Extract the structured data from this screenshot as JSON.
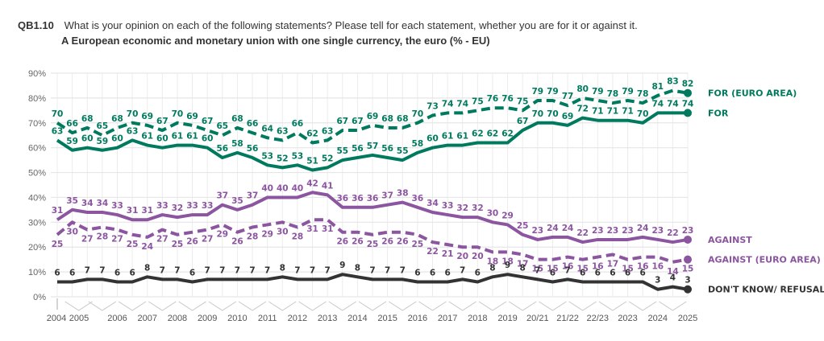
{
  "header": {
    "code": "QB1.10",
    "question": "What is your opinion on each of the following statements? Please tell for each statement, whether you are for it or against it.",
    "subtitle": "A European economic and monetary union with one single currency, the euro (% - EU)"
  },
  "chart_data": {
    "type": "line",
    "title": "A European economic and monetary union with one single currency, the euro (% - EU)",
    "xlabel": "",
    "ylabel": "",
    "ylim": [
      0,
      90
    ],
    "yticks": [
      "0%",
      "10%",
      "20%",
      "30%",
      "40%",
      "50%",
      "60%",
      "70%",
      "80%",
      "90%"
    ],
    "grid": true,
    "legend_placement": "right (end of lines)",
    "x_count": 43,
    "x_tick_labels": [
      {
        "index": 0,
        "label": "2004"
      },
      {
        "index": 2,
        "label": "2005"
      },
      {
        "index": 5,
        "label": "2006"
      },
      {
        "index": 8,
        "label": "2007"
      },
      {
        "index": 11,
        "label": "2008"
      },
      {
        "index": 14,
        "label": "2009"
      },
      {
        "index": 17,
        "label": "2010"
      },
      {
        "index": 20,
        "label": "2011"
      },
      {
        "index": 23,
        "label": "2012"
      },
      {
        "index": 26,
        "label": "2013"
      },
      {
        "index": 29,
        "label": "2014"
      },
      {
        "index": 32,
        "label": "2015"
      },
      {
        "index": 35,
        "label": "2016"
      },
      {
        "index": 38,
        "label": "2017"
      },
      {
        "index": 41,
        "label": "2018"
      },
      {
        "index": 44,
        "label": "2019"
      },
      {
        "index": 47,
        "label": "20/21"
      },
      {
        "index": 50,
        "label": "21/22"
      },
      {
        "index": 53,
        "label": "22/23"
      },
      {
        "index": 56,
        "label": "2023"
      },
      {
        "index": 59,
        "label": "2024"
      },
      {
        "index": 62,
        "label": "2025"
      }
    ],
    "series": [
      {
        "name": "FOR (EURO AREA)",
        "color": "#007A5E",
        "style": "dashed",
        "label_pos": "above",
        "values": [
          70,
          66,
          68,
          65,
          68,
          70,
          69,
          67,
          70,
          69,
          67,
          65,
          68,
          66,
          64,
          63,
          66,
          62,
          63,
          67,
          67,
          69,
          68,
          68,
          70,
          73,
          74,
          74,
          75,
          76,
          76,
          75,
          79,
          79,
          77,
          80,
          79,
          78,
          79,
          78,
          81,
          83,
          82
        ]
      },
      {
        "name": "FOR",
        "color": "#007A5E",
        "style": "solid",
        "label_pos": "above",
        "values": [
          63,
          59,
          60,
          59,
          60,
          63,
          61,
          60,
          61,
          61,
          60,
          56,
          58,
          56,
          53,
          52,
          53,
          51,
          52,
          55,
          56,
          57,
          56,
          55,
          58,
          60,
          61,
          61,
          62,
          62,
          62,
          67,
          70,
          70,
          69,
          72,
          71,
          71,
          71,
          70,
          74,
          74,
          74
        ]
      },
      {
        "name": "AGAINST",
        "color": "#8B55A0",
        "style": "solid",
        "label_pos": "above",
        "values": [
          31,
          35,
          34,
          34,
          33,
          31,
          31,
          33,
          32,
          33,
          33,
          37,
          35,
          37,
          40,
          40,
          40,
          42,
          41,
          36,
          36,
          36,
          37,
          38,
          36,
          34,
          33,
          32,
          32,
          30,
          29,
          25,
          23,
          24,
          24,
          22,
          23,
          23,
          23,
          24,
          23,
          22,
          23
        ]
      },
      {
        "name": "AGAINST (EURO AREA)",
        "color": "#8B55A0",
        "style": "dashed",
        "label_pos": "below",
        "values": [
          25,
          30,
          27,
          28,
          27,
          25,
          24,
          27,
          25,
          26,
          27,
          29,
          26,
          28,
          29,
          30,
          28,
          31,
          31,
          26,
          26,
          25,
          26,
          26,
          25,
          22,
          21,
          20,
          20,
          18,
          18,
          17,
          15,
          15,
          16,
          15,
          16,
          17,
          15,
          16,
          16,
          14,
          15
        ]
      },
      {
        "name": "DON'T KNOW/ REFUSAL",
        "color": "#333333",
        "style": "solid",
        "label_pos": "above",
        "values": [
          6,
          6,
          7,
          7,
          6,
          6,
          8,
          7,
          7,
          6,
          7,
          7,
          7,
          7,
          7,
          8,
          7,
          7,
          7,
          9,
          8,
          7,
          7,
          7,
          6,
          6,
          6,
          7,
          6,
          8,
          9,
          8,
          7,
          6,
          7,
          6,
          6,
          6,
          6,
          6,
          3,
          4,
          3
        ]
      }
    ]
  }
}
